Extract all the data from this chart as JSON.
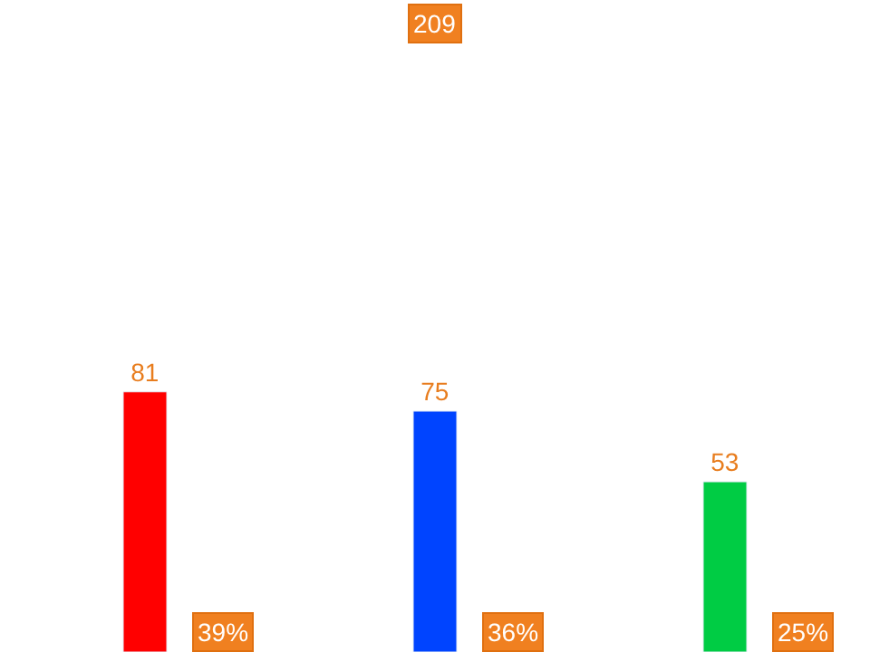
{
  "chart_data": {
    "type": "bar",
    "categories": [
      null,
      null,
      null
    ],
    "values": [
      81,
      75,
      53
    ],
    "colors": [
      "#ff0000",
      "#0044ff",
      "#00cc44"
    ],
    "data_labels": true,
    "annotations": [
      "209",
      "39%",
      "36%",
      "25%"
    ]
  }
}
